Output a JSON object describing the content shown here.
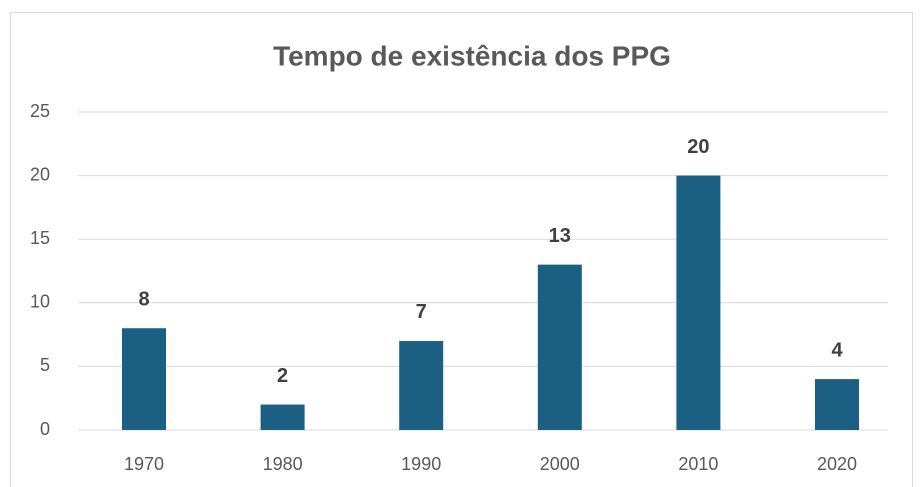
{
  "chart_data": {
    "type": "bar",
    "title": "Tempo de existência dos PPG",
    "categories": [
      "1970",
      "1980",
      "1990",
      "2000",
      "2010",
      "2020"
    ],
    "values": [
      8,
      2,
      7,
      13,
      20,
      4
    ],
    "color": "#1b5f82",
    "ylim": [
      0,
      25
    ],
    "yticks": [
      0,
      5,
      10,
      15,
      20,
      25
    ],
    "grid": true,
    "data_labels": true
  }
}
